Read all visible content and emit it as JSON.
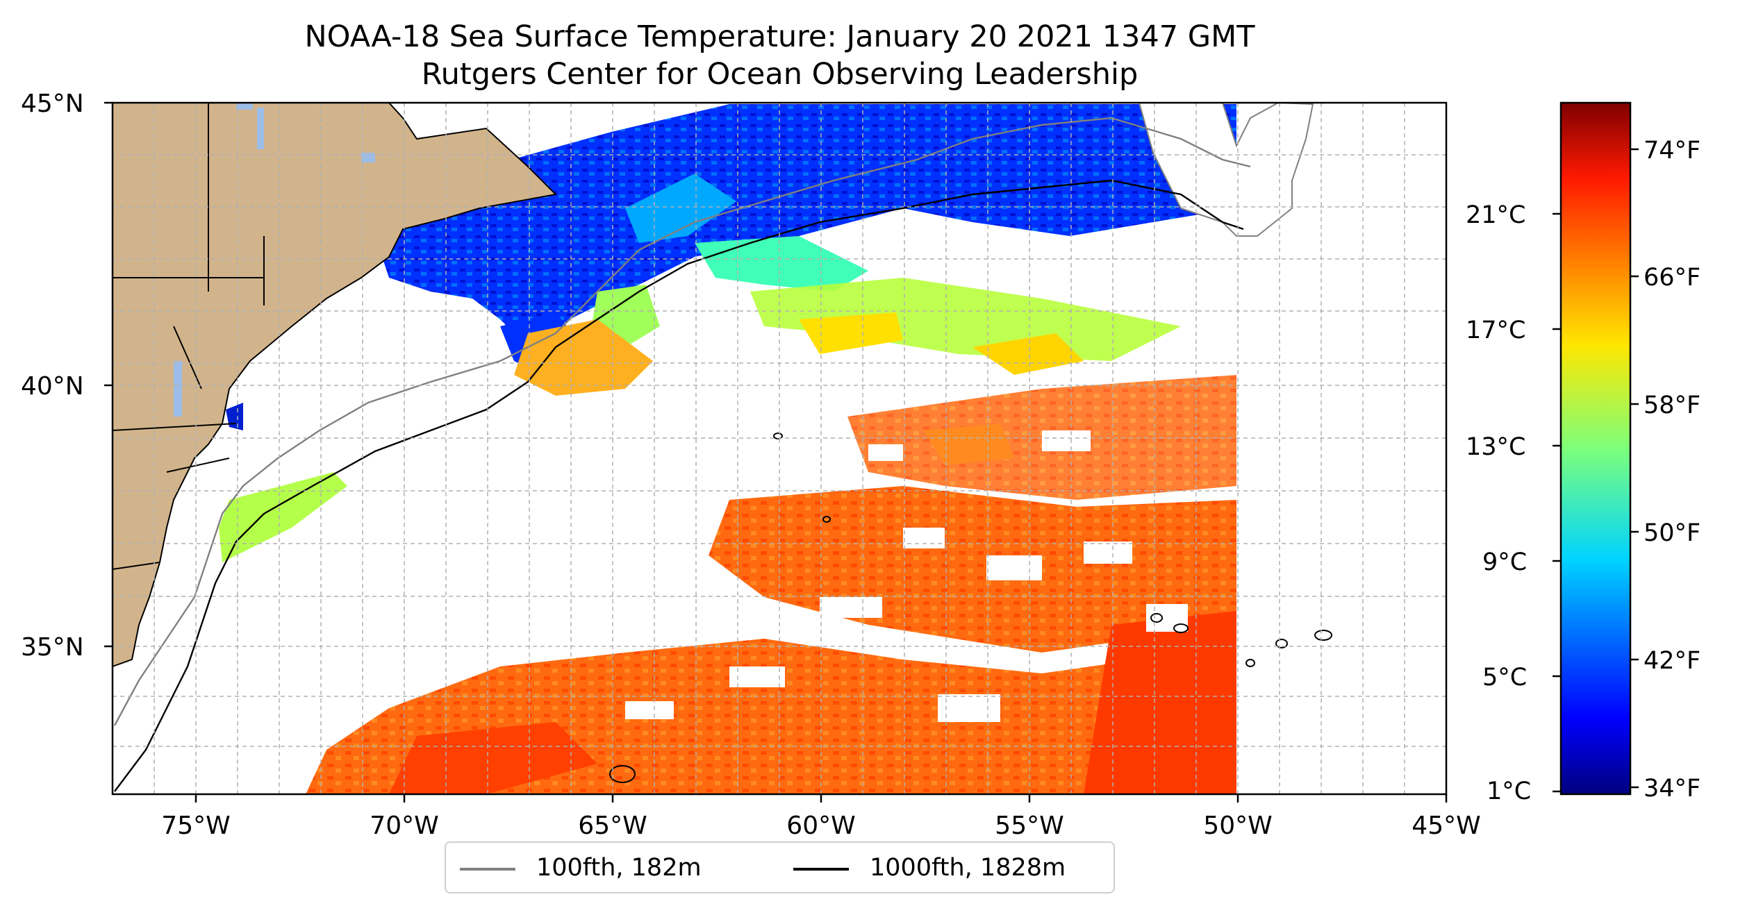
{
  "title_line1": "NOAA-18 Sea Surface Temperature: January 20 2021 1347 GMT",
  "title_line2": "Rutgers Center for Ocean Observing Leadership",
  "x_ticks": [
    "75°W",
    "70°W",
    "65°W",
    "60°W",
    "55°W",
    "50°W",
    "45°W"
  ],
  "y_ticks": [
    "45°N",
    "40°N",
    "35°N"
  ],
  "colorbar": {
    "celsius_ticks": [
      "21°C",
      "17°C",
      "13°C",
      "9°C",
      "5°C",
      "1°C"
    ],
    "fahrenheit_ticks": [
      "74°F",
      "66°F",
      "58°F",
      "50°F",
      "42°F",
      "34°F"
    ],
    "colormap": "jet",
    "range_f": [
      33,
      77
    ]
  },
  "legend": {
    "items": [
      {
        "label": "100fth, 182m",
        "color": "#808080"
      },
      {
        "label": "1000fth, 1828m",
        "color": "#000000"
      }
    ]
  },
  "colors": {
    "land": "#d2b48c",
    "lakes": "#9cbde8",
    "ocean_no_data": "#ffffff",
    "grid": "#b0b0b0"
  }
}
